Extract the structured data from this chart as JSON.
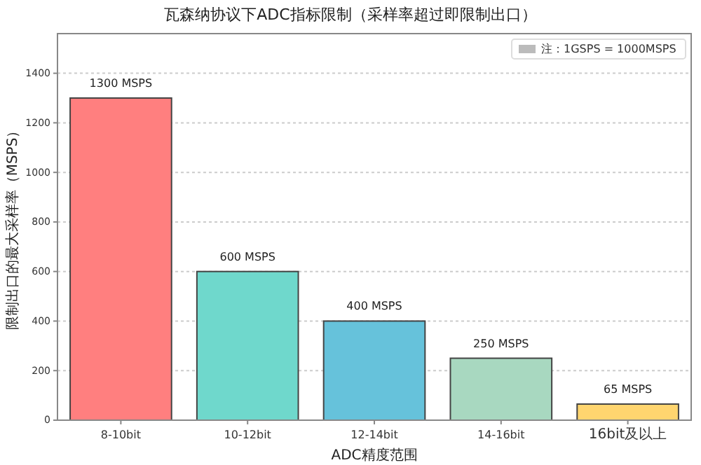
{
  "chart_data": {
    "type": "bar",
    "title": "瓦森纳协议下ADC指标限制（采样率超过即限制出口）",
    "xlabel": "ADC精度范围",
    "ylabel": "限制出口的最大采样率（MSPS）",
    "categories": [
      "8-10bit",
      "10-12bit",
      "12-14bit",
      "14-16bit",
      "16bit及以上"
    ],
    "values": [
      1300,
      600,
      400,
      250,
      65
    ],
    "colors": [
      "#ff7f7f",
      "#6fd8cc",
      "#66c2db",
      "#a8d8c0",
      "#ffd56f"
    ],
    "value_labels": [
      "1300 MSPS",
      "600 MSPS",
      "400 MSPS",
      "250 MSPS",
      "65 MSPS"
    ],
    "ylim": [
      0,
      1560
    ],
    "yticks": [
      0,
      200,
      400,
      600,
      800,
      1000,
      1200,
      1400
    ],
    "grid": "y",
    "annotations": [
      "注：1GSPS = 1000MSPS"
    ]
  }
}
